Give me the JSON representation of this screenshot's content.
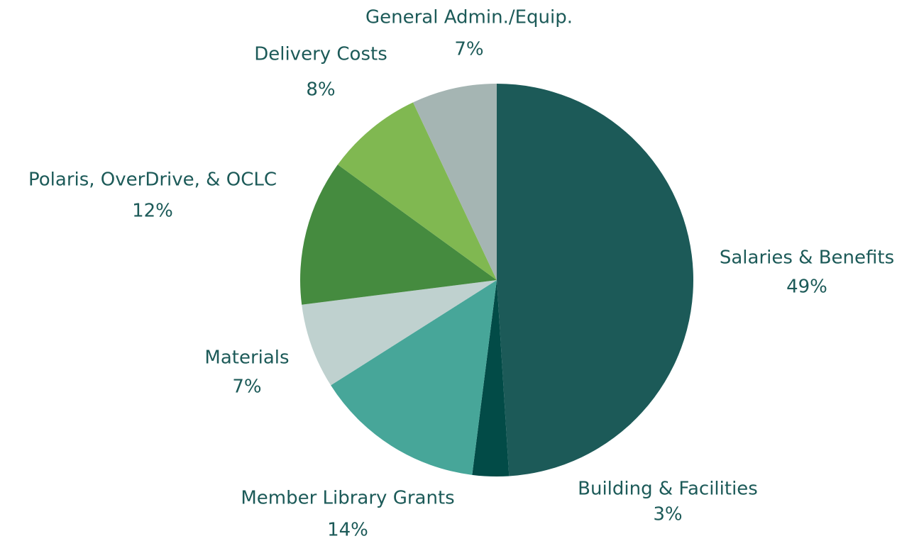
{
  "chart_data": {
    "type": "pie",
    "categories": [
      "Salaries & Benefits",
      "Building & Facilities",
      "Member Library Grants",
      "Materials",
      "Polaris, OverDrive, & OCLC",
      "Delivery Costs",
      "General Admin./Equip."
    ],
    "values": [
      49,
      3,
      14,
      7,
      12,
      8,
      7
    ],
    "value_labels": [
      "49%",
      "3%",
      "14%",
      "7%",
      "12%",
      "8%",
      "7%"
    ],
    "colors": [
      "#1c5a58",
      "#024b47",
      "#47a699",
      "#bfd1cf",
      "#458b3f",
      "#80b851",
      "#a5b5b3"
    ]
  }
}
